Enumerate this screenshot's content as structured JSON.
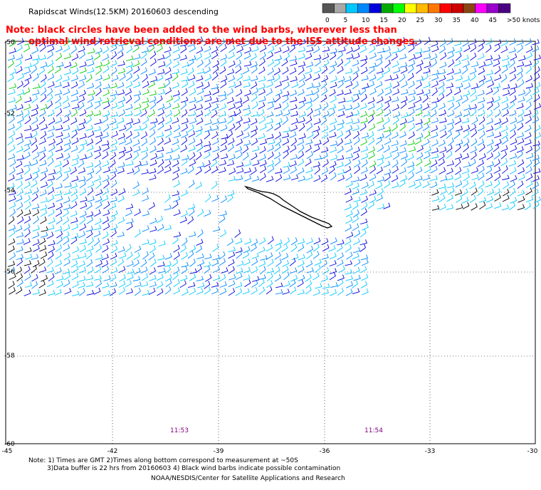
{
  "map": {
    "title": "Rapidscat Winds(12.5KM) 20160603 descending",
    "note_lines": [
      "Note: black circles have been added to the wind barbs, wherever less than",
      "optimal wind retrieval conditions are met due to the ISS attitude changes."
    ],
    "legend": {
      "labels": [
        "0",
        "5",
        "10",
        "15",
        "20",
        "25",
        "30",
        "35",
        "40",
        "45",
        ">50 knots"
      ],
      "colors": [
        "#555555",
        "#a8a8a8",
        "#00c8ff",
        "#0088ff",
        "#0000dd",
        "#00aa00",
        "#00ff00",
        "#ffff00",
        "#ffbb00",
        "#ff7700",
        "#ff0000",
        "#cc0000",
        "#8b4513",
        "#ff00ff",
        "#9900cc",
        "#4b0082"
      ]
    },
    "lon_ticks": [
      "-45",
      "-42",
      "-39",
      "-36",
      "-33",
      "-30"
    ],
    "lat_ticks": [
      "-50",
      "-52",
      "-54",
      "-56",
      "-58",
      "-60"
    ],
    "time_labels": [
      "11:53",
      "11:54"
    ],
    "footer": {
      "line1": "Note: 1) Times are GMT 2)Times along bottom correspond to measurement at ~50S",
      "line2": "3)Data buffer is 22 hrs from 20160603 4) Black wind barbs indicate possible contamination",
      "line3": "NOAA/NESDIS/Center for Satellite Applications and Research"
    },
    "barb_colors": {
      "light": "#00c8ff",
      "medium": "#0088ff",
      "strong": "#0000dd",
      "green": "#00cc00",
      "contaminated": "#000000"
    }
  }
}
